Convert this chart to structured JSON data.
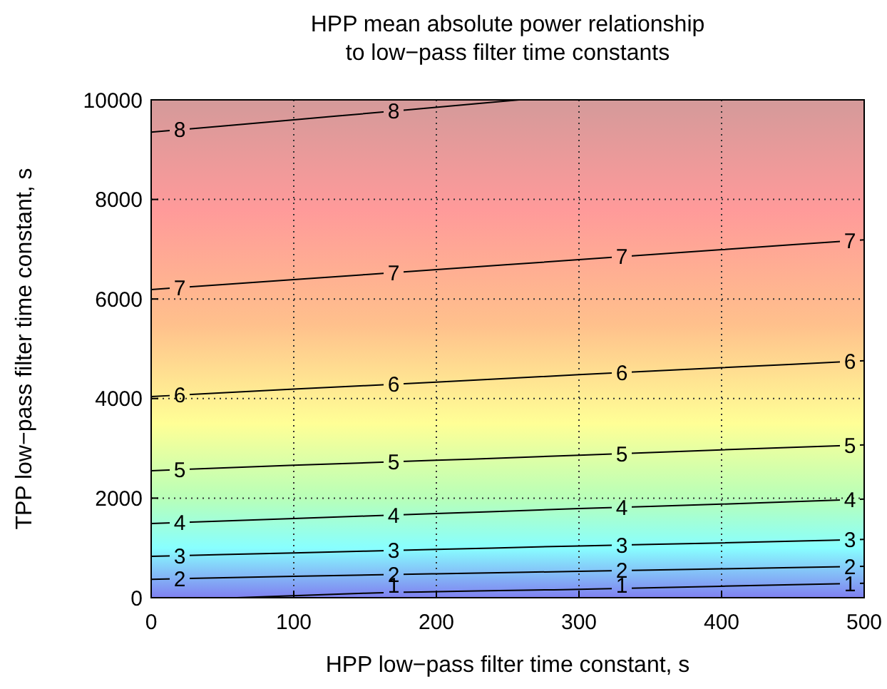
{
  "chart_data": {
    "type": "line",
    "title": "HPP mean absolute power relationship\nto low−pass filter time constants",
    "xlabel": "HPP low−pass filter time constant, s",
    "ylabel": "TPP low−pass filter time constant, s",
    "xlim": [
      0,
      500
    ],
    "ylim": [
      0,
      10000
    ],
    "xticks": [
      0,
      100,
      200,
      300,
      400,
      500
    ],
    "yticks": [
      0,
      2000,
      4000,
      6000,
      8000,
      10000
    ],
    "grid": true,
    "marker": "none",
    "line_style": "solid",
    "series": [
      {
        "name": "1",
        "color": "#000000",
        "x": [
          60,
          150,
          300,
          400,
          500
        ],
        "values": [
          0,
          90,
          170,
          230,
          290
        ]
      },
      {
        "name": "2",
        "color": "#000000",
        "x": [
          0,
          100,
          200,
          300,
          400,
          500
        ],
        "values": [
          370,
          430,
          480,
          530,
          580,
          630
        ]
      },
      {
        "name": "3",
        "color": "#000000",
        "x": [
          0,
          100,
          200,
          300,
          400,
          500
        ],
        "values": [
          830,
          900,
          970,
          1040,
          1100,
          1170
        ]
      },
      {
        "name": "4",
        "color": "#000000",
        "x": [
          0,
          100,
          200,
          300,
          400,
          500
        ],
        "values": [
          1490,
          1590,
          1690,
          1790,
          1880,
          1980
        ]
      },
      {
        "name": "5",
        "color": "#000000",
        "x": [
          0,
          100,
          200,
          300,
          400,
          500
        ],
        "values": [
          2550,
          2660,
          2760,
          2860,
          2970,
          3070
        ]
      },
      {
        "name": "6",
        "color": "#000000",
        "x": [
          0,
          100,
          200,
          300,
          400,
          500
        ],
        "values": [
          4040,
          4190,
          4330,
          4480,
          4620,
          4760
        ]
      },
      {
        "name": "7",
        "color": "#000000",
        "x": [
          0,
          100,
          200,
          300,
          400,
          500
        ],
        "values": [
          6190,
          6390,
          6590,
          6790,
          6990,
          7190
        ]
      },
      {
        "name": "8",
        "color": "#000000",
        "x": [
          0,
          100,
          180,
          258
        ],
        "values": [
          9350,
          9600,
          9800,
          10000
        ]
      }
    ]
  }
}
